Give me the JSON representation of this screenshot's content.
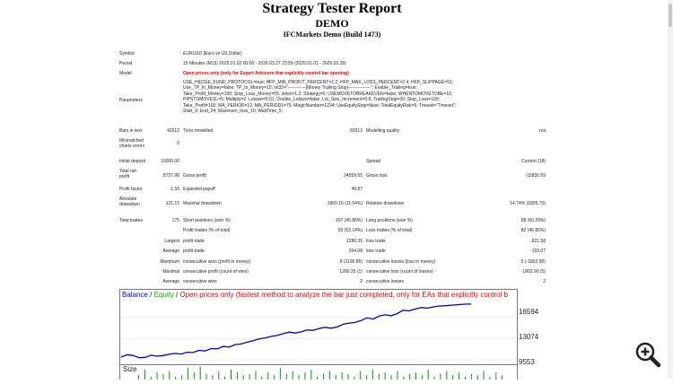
{
  "header": {
    "title": "Strategy Tester Report",
    "subtitle": "DEMO",
    "server": "IFCMarkets Demo (Build 1473)"
  },
  "settings": {
    "symbol_label": "Symbol",
    "symbol_value": "EURUSD (Euro vs US Dollar)",
    "period_label": "Period",
    "period_value": "15 Minutes (M15) 2025.01.02 00:00 - 2026.03.27 23:59 (2025.01.01 - 2026.03.28)",
    "model_label": "Model",
    "model_value": "Open prices only (only for Expert Advisors that explicitly control bar opening)",
    "parameters_label": "Parameters",
    "parameters_lines": [
      "USE_HEDGE_FUND_PROTOCOL=true; HFP_MIN_PROFIT_PERCENT=2.2; HFP_MAX_LOSS_PERCENT=2.4; HFP_SLIPPAGE=51;",
      "Use_TP_In_Money=false; TP_In_Money=10; txt32=\"------------[Money Trailing Stop]---------------\"; Enable_Trailing=true;",
      "Take_Profit_Money=190; Stop_Loss_Money=55; index=1.3; Strategy=0; USEMOVETOBREAKEVEN=false; WHENTOMOVETOBE=10;",
      "PIPSTOMOVESL=5; Multiply=2; Lotsize=0.01; Double_Lotsize=false; Lot_Size_Increment=0.8; TrailingStop=30; Stop_Loss=100;",
      "Take_Profit=100; MA_PERIOD=12; MA_PERIOD1=75; MagicNumber=1234; UseEquityStop=false; TotalEquityRisk=5; Tmeset=\"Tmeset\";",
      "Start_0; End_24; Maximum_loss_10; WaitTime_5;"
    ]
  },
  "results": {
    "bars_label": "Bars in test",
    "bars_value": "42012",
    "ticks_label": "Ticks modelled",
    "ticks_value": "83013",
    "quality_label": "Modelling quality",
    "quality_value": "n/a",
    "mismatch_label": "Mismatched charts errors",
    "mismatch_value": "0",
    "initial_label": "Initial deposit",
    "initial_value": "10000.00",
    "spread_label": "Spread",
    "spread_value": "Current (18)",
    "netprofit_label": "Total net profit",
    "netprofit_value": "8727.96",
    "grossprofit_label": "Gross profit",
    "grossprofit_value": "24559.55",
    "grossloss_label": "Gross loss",
    "grossloss_value": "-15831.59",
    "pf_label": "Profit factor",
    "pf_value": "1.55",
    "expected_label": "Expected payoff",
    "expected_value": "49.87",
    "absdd_label": "Absolute drawdown",
    "absdd_value": "121.15",
    "maxdd_label": "Maximal drawdown",
    "maxdd_value": "1809.19 (11.54%)",
    "reldd_label": "Relative drawdown",
    "reldd_value": "14.74% (1805.72)",
    "trades_label": "Total trades",
    "trades_value": "175",
    "short_label": "Short positions (won %)",
    "short_value": "107 (45.80%)",
    "long_label": "Long positions (won %)",
    "long_value": "68 (60.29%)",
    "pt_label": "Profit trades (% of total)",
    "pt_value": "93 (53.14%)",
    "lt_label": "Loss trades (% of total)",
    "lt_value": "82 (46.86%)",
    "largest_label": "Largest",
    "lp_label": "profit trade",
    "lp_value": "1280.35",
    "ll_label": "loss trade",
    "ll_value": "-821.58",
    "average_label": "Average",
    "ap_label": "profit trade",
    "ap_value": "264.08",
    "al_label": "loss trade",
    "al_value": "-193.07",
    "maximum_label": "Maximum",
    "mcw_label": "consecutive wins (profit in money)",
    "mcw_value": "8 (1190.86)",
    "mcl_label": "consecutive losses (loss in money)",
    "mcl_value": "5 (-1802.90)",
    "maximal_label": "Maximal",
    "mcp_label": "consecutive profit (count of wins)",
    "mcp_value": "1280.35 (1)",
    "mcll_label": "consecutive loss (count of losses)",
    "mcll_value": "-1802.90 (5)",
    "average2_label": "Average",
    "acw_label": "consecutive wins",
    "acw_value": "2",
    "acl_label": "consecutive losses",
    "acl_value": "2"
  },
  "chart": {
    "legend_balance": "Balance",
    "legend_sep1": " / ",
    "legend_equity": "Equity",
    "legend_sep2": " / ",
    "legend_text": "Open prices only (fastest method to analyze the bar just completed, only for EAs that explicitly control b",
    "size_label": "Size",
    "colors": {
      "balance": "#0000c8",
      "equity": "#00b000",
      "bars": "#00a000"
    }
  },
  "chart_data": {
    "type": "line",
    "title": "",
    "ylim": [
      9553,
      19300
    ],
    "yticks": [
      "16594",
      "13074",
      "9553"
    ],
    "ytick_values": [
      16594,
      13074,
      9553
    ],
    "series": [
      {
        "name": "Balance",
        "x": [
          0,
          3,
          6,
          9,
          12,
          15,
          18,
          21,
          24,
          27,
          30,
          33,
          36,
          39,
          42,
          45,
          48,
          51,
          54,
          57,
          60,
          63,
          66,
          69,
          72,
          75,
          78,
          81,
          84,
          87,
          90,
          93,
          96,
          99,
          102,
          105,
          108,
          111,
          114,
          117,
          120,
          123,
          126,
          129,
          132,
          135,
          138,
          141,
          144,
          147,
          150,
          153,
          156,
          159,
          162,
          165,
          168,
          171,
          174,
          175
        ],
        "values": [
          10000,
          10400,
          10250,
          9900,
          9950,
          10300,
          10150,
          10250,
          10450,
          10600,
          10500,
          10800,
          10750,
          11100,
          11000,
          11400,
          11350,
          11750,
          11650,
          12050,
          12150,
          12450,
          12700,
          13000,
          13150,
          13400,
          13550,
          13850,
          14100,
          13950,
          14150,
          14450,
          14400,
          14700,
          14900,
          14750,
          14950,
          15400,
          15600,
          15700,
          16000,
          16450,
          16250,
          16750,
          16950,
          16800,
          17150,
          17700,
          17600,
          17900,
          18150,
          18050,
          18250,
          18400,
          18450,
          18550,
          18600,
          18700,
          18727,
          18727
        ]
      }
    ],
    "size_bars": [
      3,
      7,
      2,
      5,
      4,
      6,
      2,
      3,
      8,
      5,
      9,
      4,
      3,
      6,
      2,
      7,
      5,
      3,
      4,
      6,
      2,
      5,
      3,
      8,
      4,
      6,
      3,
      5,
      7,
      2,
      4,
      6,
      3,
      5,
      4,
      2,
      6,
      3,
      7,
      4,
      5,
      3,
      6,
      2,
      4,
      5,
      3,
      7,
      2,
      4,
      6,
      3,
      5,
      2,
      4,
      3,
      6,
      2,
      5,
      3
    ]
  }
}
